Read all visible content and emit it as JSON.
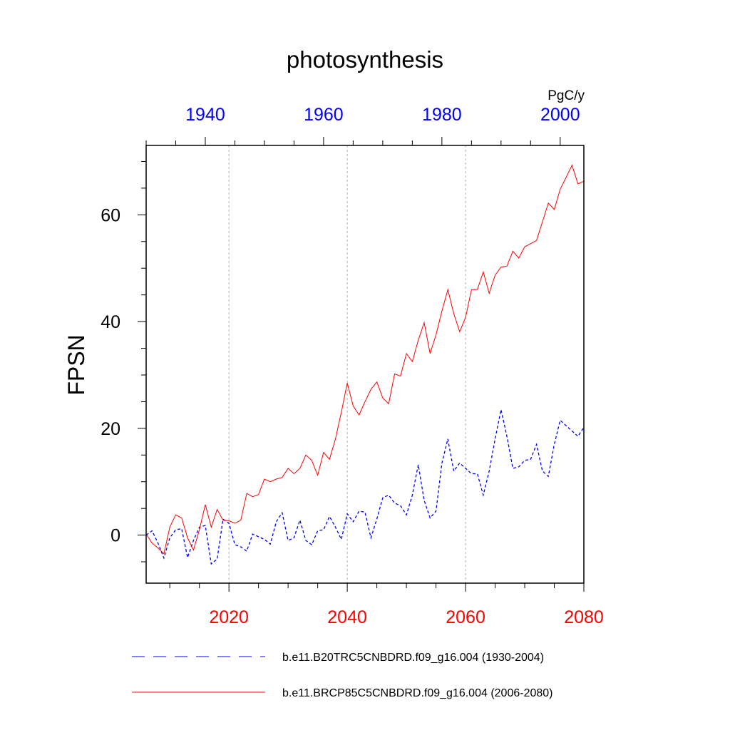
{
  "chart_data": {
    "type": "line",
    "title": "photosynthesis",
    "units": "PgC/y",
    "ylabel": "FPSN",
    "ylim": [
      -9,
      73
    ],
    "yticks": [
      0,
      20,
      40,
      60
    ],
    "bottom_axis": {
      "xlim": [
        2006,
        2080
      ],
      "ticks": [
        2020,
        2040,
        2060,
        2080
      ],
      "color": "#ff0000"
    },
    "top_axis": {
      "xlim": [
        1930,
        2004
      ],
      "ticks": [
        1940,
        1960,
        1980,
        2000
      ],
      "color": "#0000ff"
    },
    "gridlines": "vertical dotted at 2020, 2040, 2060",
    "legend_position": "bottom",
    "series": [
      {
        "name": "b.e11.B20TRC5CNBDRD.f09_g16.004 (1930-2004)",
        "axis": "top",
        "color": "#0000ff",
        "dash": "dashed",
        "x": [
          1930,
          1931,
          1932,
          1933,
          1934,
          1935,
          1936,
          1937,
          1938,
          1939,
          1940,
          1941,
          1942,
          1943,
          1944,
          1945,
          1946,
          1947,
          1948,
          1949,
          1950,
          1951,
          1952,
          1953,
          1954,
          1955,
          1956,
          1957,
          1958,
          1959,
          1960,
          1961,
          1962,
          1963,
          1964,
          1965,
          1966,
          1967,
          1968,
          1969,
          1970,
          1971,
          1972,
          1973,
          1974,
          1975,
          1976,
          1977,
          1978,
          1979,
          1980,
          1981,
          1982,
          1983,
          1984,
          1985,
          1986,
          1987,
          1988,
          1989,
          1990,
          1991,
          1992,
          1993,
          1994,
          1995,
          1996,
          1997,
          1998,
          1999,
          2000,
          2001,
          2002,
          2003,
          2004
        ],
        "values": [
          0.0,
          0.8,
          -1.5,
          -4.3,
          -0.5,
          1.0,
          1.2,
          -4.2,
          -1.0,
          1.5,
          1.8,
          -5.4,
          -4.5,
          3.0,
          2.2,
          -1.8,
          -2.2,
          -3.0,
          0.2,
          -0.3,
          -0.8,
          -1.7,
          2.5,
          4.2,
          -1.0,
          -0.5,
          2.8,
          -1.0,
          -1.8,
          0.8,
          1.0,
          3.5,
          1.5,
          -0.8,
          4.0,
          2.5,
          4.5,
          4.3,
          -0.5,
          3.0,
          7.0,
          7.5,
          6.0,
          5.5,
          3.8,
          7.5,
          13.2,
          6.5,
          3.2,
          4.5,
          13.5,
          18.0,
          12.0,
          13.5,
          12.5,
          11.5,
          11.5,
          7.5,
          12.0,
          18.0,
          23.5,
          18.5,
          12.5,
          12.8,
          14.0,
          14.2,
          17.0,
          12.0,
          11.0,
          17.0,
          21.5,
          20.5,
          19.5,
          18.5,
          20.2
        ]
      },
      {
        "name": "b.e11.BRCP85C5CNBDRD.f09_g16.004 (2006-2080)",
        "axis": "bottom",
        "color": "#ff0000",
        "dash": "solid",
        "x": [
          2006,
          2007,
          2008,
          2009,
          2010,
          2011,
          2012,
          2013,
          2014,
          2015,
          2016,
          2017,
          2018,
          2019,
          2020,
          2021,
          2022,
          2023,
          2024,
          2025,
          2026,
          2027,
          2028,
          2029,
          2030,
          2031,
          2032,
          2033,
          2034,
          2035,
          2036,
          2037,
          2038,
          2039,
          2040,
          2041,
          2042,
          2043,
          2044,
          2045,
          2046,
          2047,
          2048,
          2049,
          2050,
          2051,
          2052,
          2053,
          2054,
          2055,
          2056,
          2057,
          2058,
          2059,
          2060,
          2061,
          2062,
          2063,
          2064,
          2065,
          2066,
          2067,
          2068,
          2069,
          2070,
          2071,
          2072,
          2073,
          2074,
          2075,
          2076,
          2077,
          2078,
          2079,
          2080
        ],
        "values": [
          0.2,
          -1.5,
          -2.4,
          -3.5,
          1.5,
          3.8,
          3.2,
          -0.5,
          -2.8,
          1.0,
          5.7,
          1.5,
          4.8,
          2.8,
          2.7,
          2.2,
          2.8,
          7.8,
          7.2,
          7.6,
          10.5,
          10.0,
          10.5,
          10.8,
          12.5,
          11.5,
          12.5,
          15.0,
          14.0,
          11.2,
          15.5,
          14.2,
          18.0,
          23.0,
          28.5,
          24.2,
          22.5,
          25.0,
          27.3,
          28.7,
          25.7,
          24.6,
          30.2,
          29.8,
          34.0,
          32.5,
          36.5,
          39.8,
          34.0,
          37.5,
          42.0,
          46.0,
          41.5,
          38.1,
          40.8,
          46.0,
          46.0,
          49.3,
          45.3,
          48.7,
          50.2,
          50.4,
          53.2,
          51.9,
          54.0,
          54.6,
          55.2,
          58.7,
          62.2,
          61.0,
          64.8,
          67.0,
          69.3,
          65.8,
          66.3
        ]
      }
    ]
  }
}
